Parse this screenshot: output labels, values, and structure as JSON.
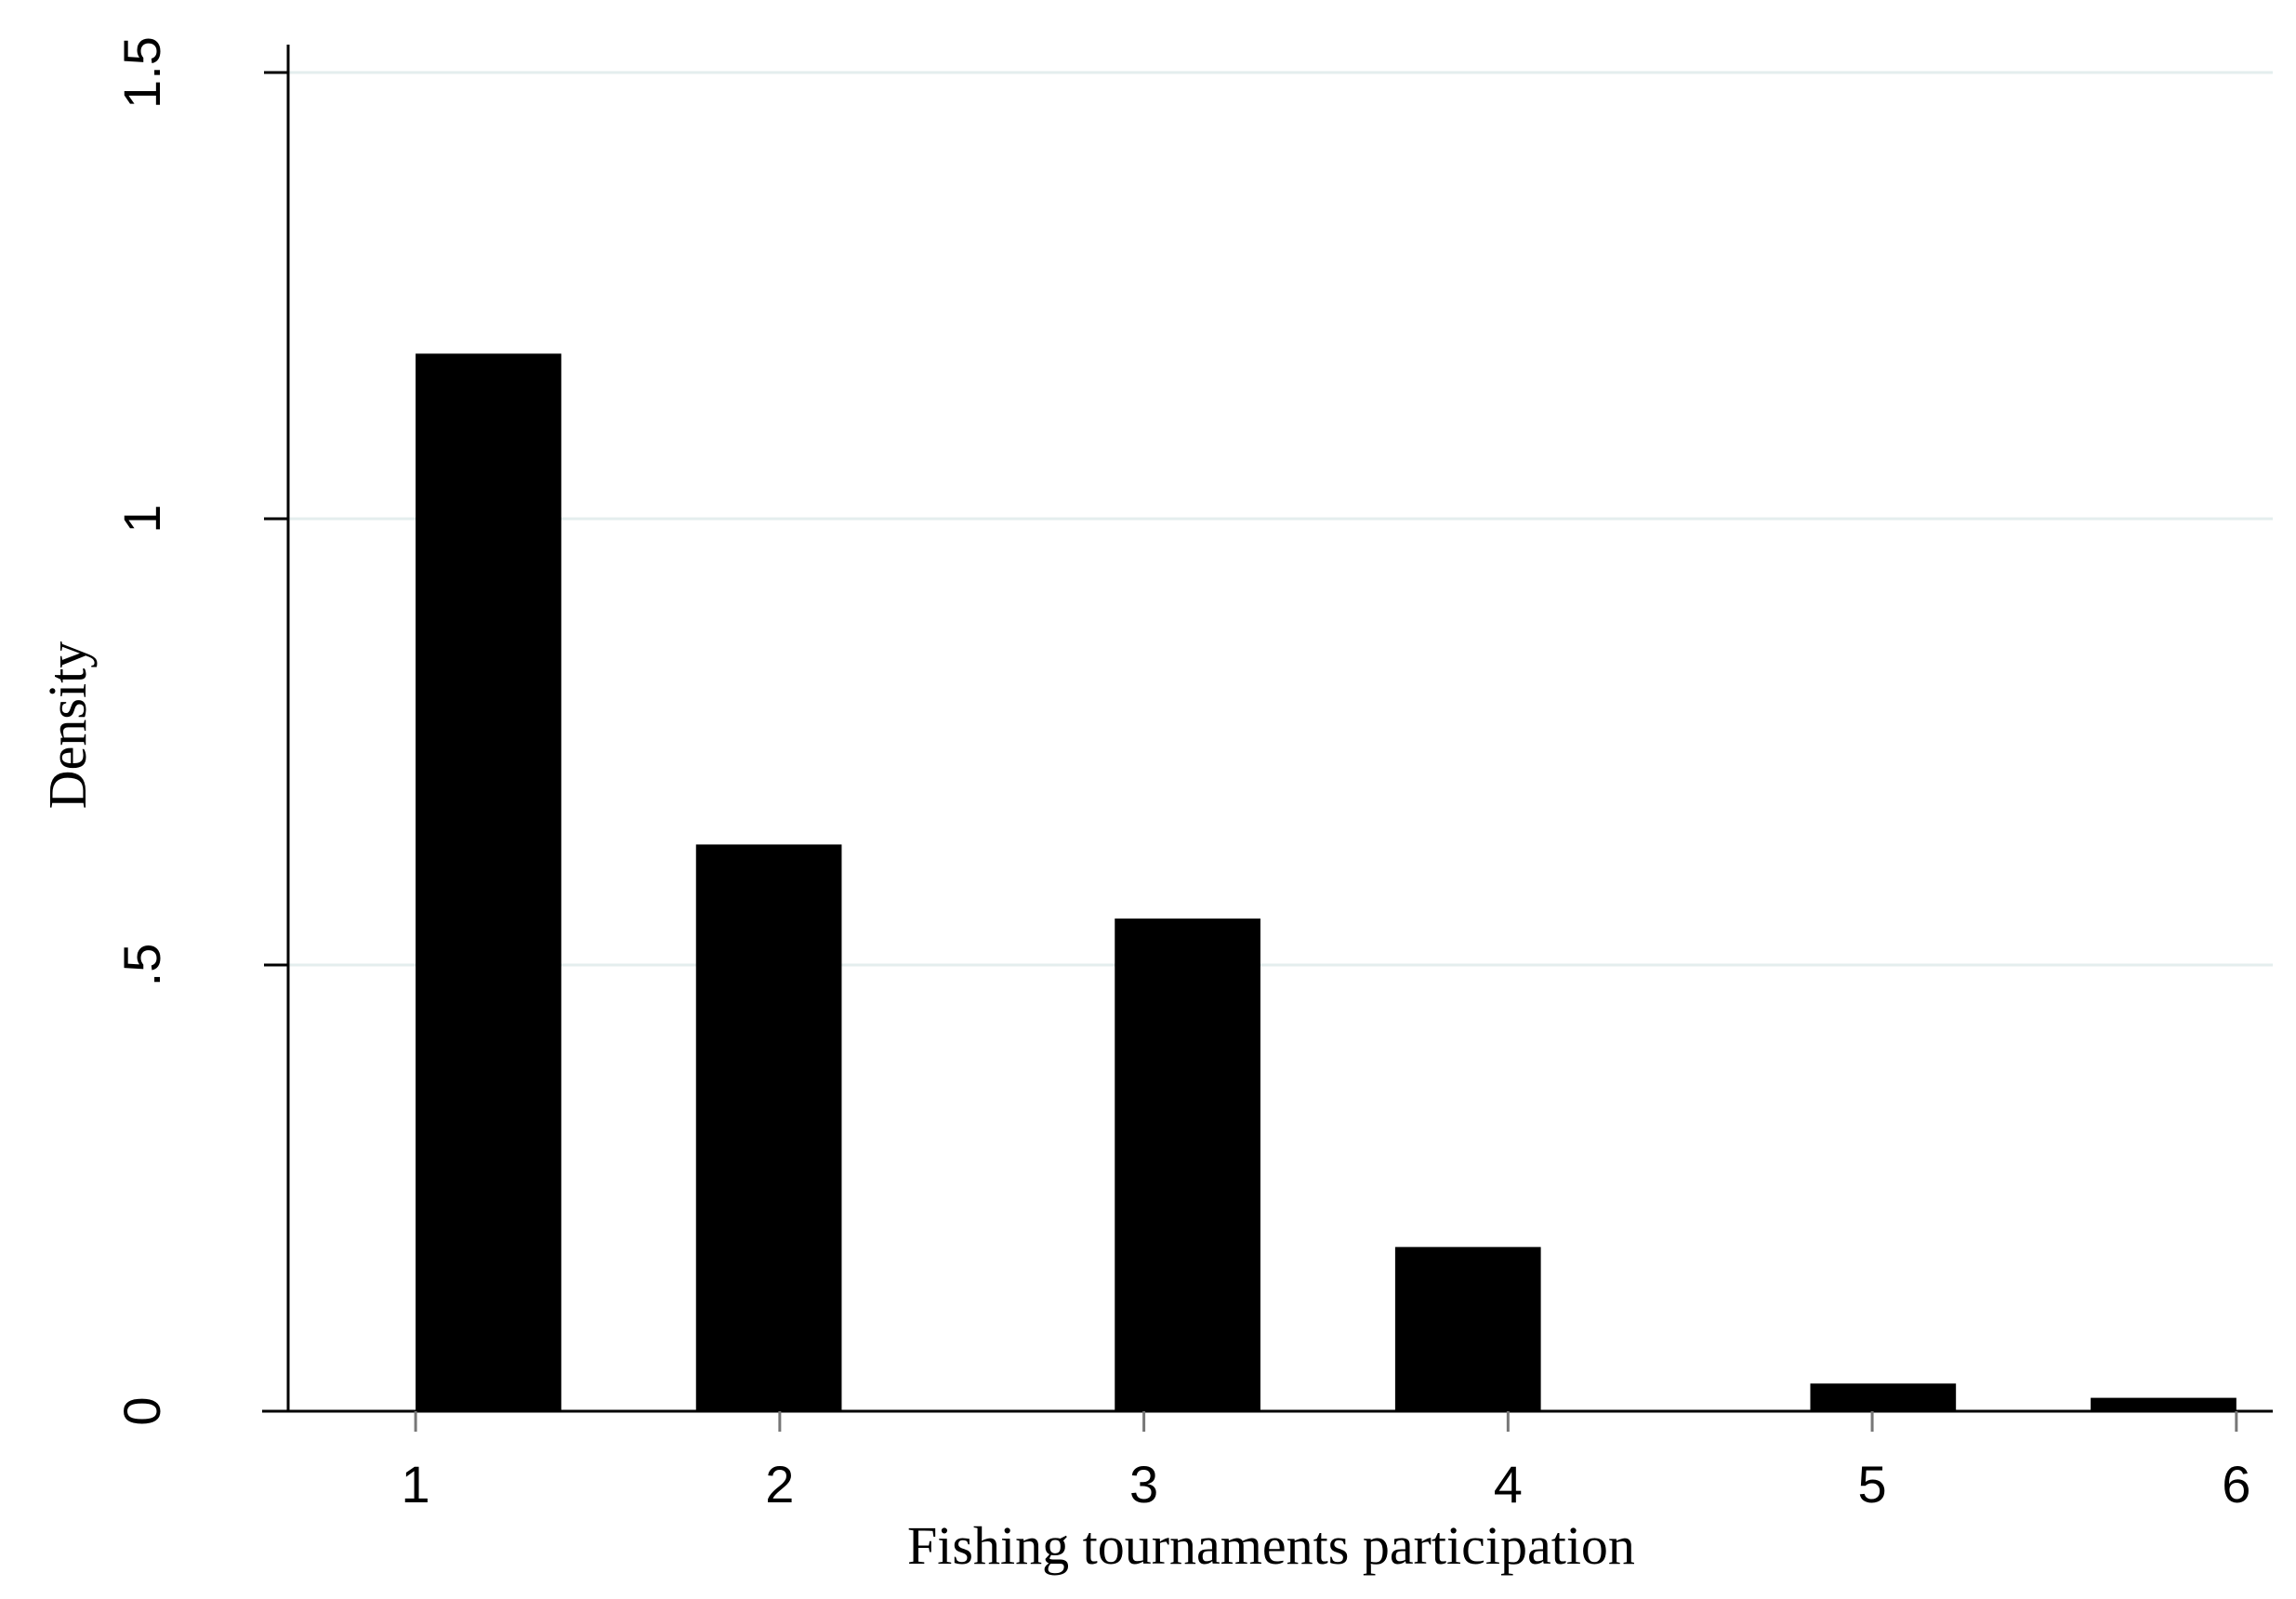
{
  "chart_data": {
    "type": "bar",
    "title": "",
    "xlabel": "Fishing tournaments participation",
    "ylabel": "Density",
    "x": [
      1.2,
      1.97,
      3.12,
      3.89,
      5.03,
      5.8
    ],
    "values": [
      1.185,
      0.635,
      0.552,
      0.184,
      0.031,
      0.015
    ],
    "bar_width": 0.4,
    "xlim": [
      0.65,
      6.1
    ],
    "ylim": [
      0,
      1.5
    ],
    "x_ticks": [
      1,
      2,
      3,
      4,
      5,
      6
    ],
    "x_tick_labels": [
      "1",
      "2",
      "3",
      "4",
      "5",
      "6"
    ],
    "y_ticks": [
      0,
      0.5,
      1,
      1.5
    ],
    "y_tick_labels": [
      "0",
      ".5",
      "1",
      "1.5"
    ],
    "grid": "horizontal",
    "colors": {
      "bar": "#000000",
      "grid": "#e4eeee",
      "axis": "#000000",
      "tick": "#777777"
    }
  }
}
